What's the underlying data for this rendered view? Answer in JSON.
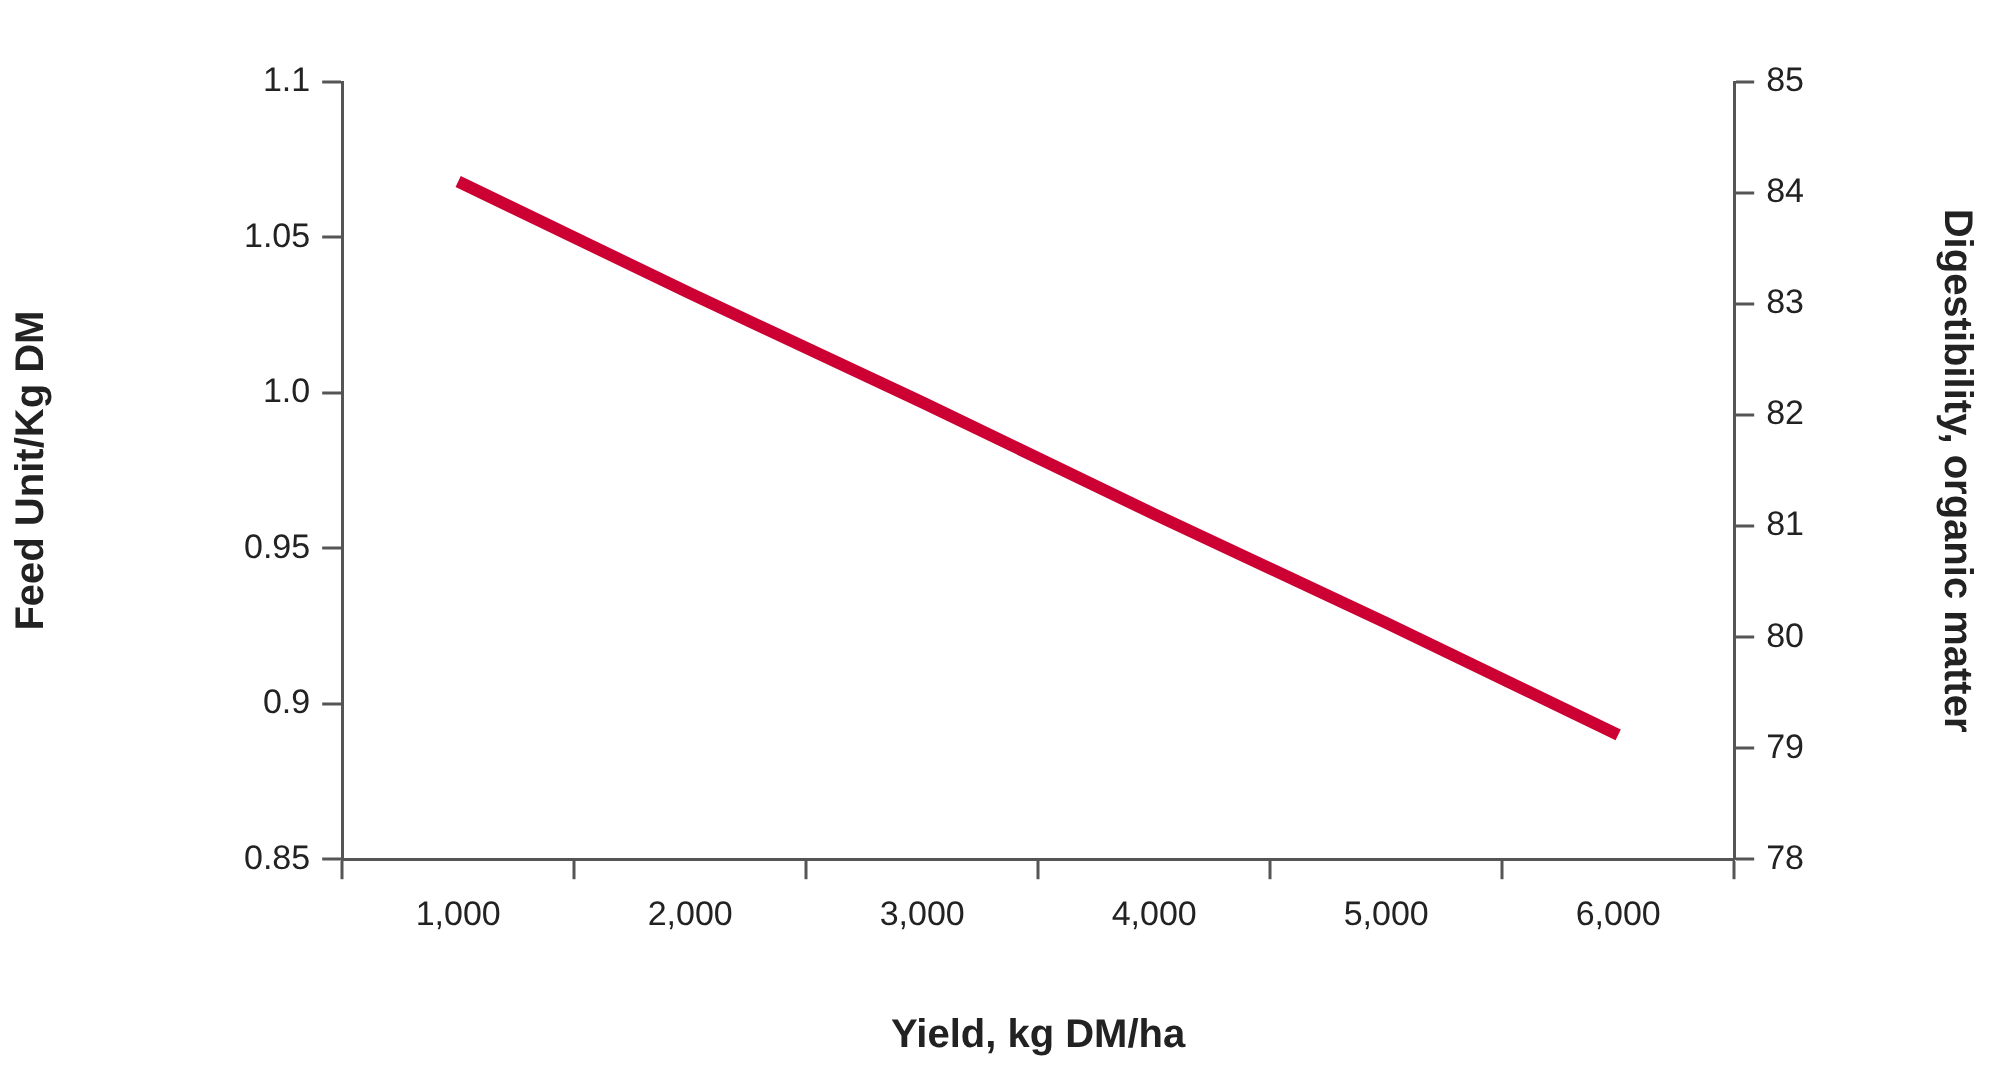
{
  "chart_data": {
    "type": "line",
    "xlabel": "Yield, kg DM/ha",
    "ylabel": "Feed Unit/Kg DM",
    "y2label": "Digestibility, organic matter",
    "categories": [
      "1,000",
      "2,000",
      "3,000",
      "4,000",
      "5,000",
      "6,000"
    ],
    "series": [
      {
        "color": "#cc0033",
        "values": [
          1.068,
          1.032,
          0.997,
          0.961,
          0.926,
          0.89
        ]
      }
    ],
    "ylim": [
      0.85,
      1.1
    ],
    "yticks": [
      0.85,
      0.9,
      0.95,
      {
        "value": 1.0,
        "label": "1.0"
      },
      1.05,
      {
        "value": 1.1,
        "label": "1.1"
      }
    ],
    "y2lim": [
      78,
      85
    ],
    "y2ticks": [
      78,
      79,
      80,
      81,
      82,
      83,
      84,
      85
    ],
    "grid": false,
    "legend": false,
    "marker": "none",
    "line_style": "solid"
  }
}
